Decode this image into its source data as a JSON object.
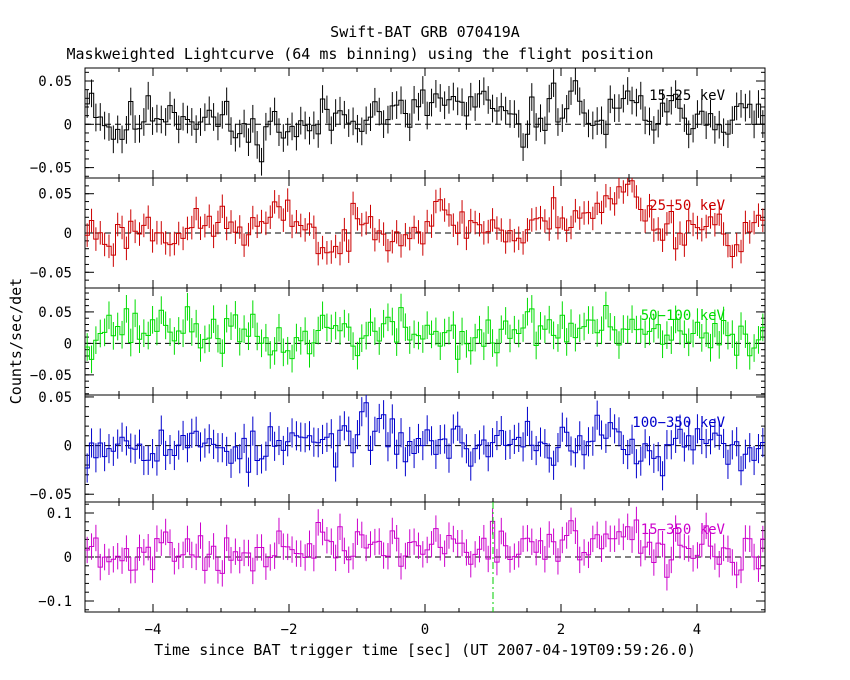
{
  "header": {
    "title": "Swift-BAT GRB 070419A",
    "subtitle": "Maskweighted Lightcurve (64 ms binning) using the flight position"
  },
  "axes": {
    "ylabel": "Counts/sec/det",
    "xlabel": "Time since BAT trigger time [sec] (UT 2007-04-19T09:59:26.0)",
    "xlim": [
      -5,
      5
    ],
    "xticks": [
      -4,
      -2,
      0,
      2,
      4
    ],
    "xtick_labels": [
      "−4",
      "−2",
      "0",
      "2",
      "4"
    ]
  },
  "chart_data": {
    "type": "line",
    "title": "Swift-BAT GRB 070419A",
    "subtitle": "Maskweighted Lightcurve (64 ms binning) using the flight position",
    "xlabel": "Time since BAT trigger time [sec] (UT 2007-04-19T09:59:26.0)",
    "ylabel": "Counts/sec/det",
    "bin_width_sec": 0.064,
    "xlim": [
      -5,
      5
    ],
    "trigger_marker": {
      "x": 1.0,
      "color": "#00cc00",
      "style": "dash-dot"
    },
    "zero_line": "dashed",
    "panels": [
      {
        "band": "15−25 keV",
        "color": "#000000",
        "ylim": [
          -0.062,
          0.065
        ],
        "yticks": [
          -0.05,
          0,
          0.05
        ],
        "ytick_labels": [
          "−0.05",
          "0",
          "0.05"
        ],
        "error_bar": 0.016,
        "noise_amp": 0.013,
        "seed": 11,
        "x": [
          -4.96,
          -4.6,
          -4.2,
          -3.8,
          -3.4,
          -3.0,
          -2.6,
          -2.2,
          -1.8,
          -1.4,
          -1.0,
          -0.6,
          -0.2,
          0.2,
          0.6,
          1.0,
          1.4,
          1.8,
          2.2,
          2.6,
          3.0,
          3.4,
          3.8,
          4.2,
          4.6,
          4.96
        ],
        "y": [
          0.04,
          -0.01,
          0.005,
          0.018,
          0.01,
          0.005,
          -0.015,
          0.0,
          -0.01,
          0.008,
          0.015,
          0.012,
          0.01,
          0.03,
          0.018,
          0.02,
          -0.01,
          0.02,
          0.03,
          -0.005,
          0.025,
          0.005,
          0.015,
          0.012,
          0.01,
          0.008
        ]
      },
      {
        "band": "25−50 keV",
        "color": "#cc0000",
        "ylim": [
          -0.07,
          0.07
        ],
        "yticks": [
          -0.05,
          0,
          0.05
        ],
        "ytick_labels": [
          "−0.05",
          "0",
          "0.05"
        ],
        "error_bar": 0.015,
        "noise_amp": 0.012,
        "seed": 23,
        "x": [
          -4.96,
          -4.6,
          -4.2,
          -3.8,
          -3.4,
          -3.0,
          -2.6,
          -2.2,
          -1.8,
          -1.4,
          -1.0,
          -0.6,
          -0.2,
          0.2,
          0.6,
          1.0,
          1.4,
          1.8,
          2.2,
          2.6,
          3.0,
          3.4,
          3.8,
          4.2,
          4.6,
          4.96
        ],
        "y": [
          0.005,
          -0.01,
          0.01,
          0.0,
          0.005,
          0.015,
          0.0,
          0.02,
          0.02,
          -0.03,
          0.01,
          0.01,
          0.0,
          0.025,
          0.01,
          0.01,
          -0.01,
          0.02,
          0.025,
          0.03,
          0.06,
          0.01,
          0.005,
          0.015,
          -0.01,
          0.015
        ]
      },
      {
        "band": "50−100 keV",
        "color": "#00dd00",
        "ylim": [
          -0.082,
          0.088
        ],
        "yticks": [
          -0.05,
          0,
          0.05
        ],
        "ytick_labels": [
          "−0.05",
          "0",
          "0.05"
        ],
        "error_bar": 0.022,
        "noise_amp": 0.017,
        "seed": 37,
        "x": [
          -4.96,
          -4.6,
          -4.2,
          -3.8,
          -3.4,
          -3.0,
          -2.6,
          -2.2,
          -1.8,
          -1.4,
          -1.0,
          -0.6,
          -0.2,
          0.2,
          0.6,
          1.0,
          1.4,
          1.8,
          2.2,
          2.6,
          3.0,
          3.4,
          3.8,
          4.2,
          4.6,
          4.96
        ],
        "y": [
          0.01,
          0.03,
          0.02,
          0.035,
          0.015,
          0.02,
          0.01,
          0.0,
          0.0,
          0.03,
          0.01,
          0.02,
          0.02,
          0.015,
          0.01,
          0.0,
          0.03,
          0.025,
          0.02,
          0.03,
          0.005,
          0.02,
          0.01,
          0.005,
          0.01,
          0.01
        ]
      },
      {
        "band": "100−350 keV",
        "color": "#0000cc",
        "ylim": [
          -0.058,
          0.052
        ],
        "yticks": [
          -0.05,
          0,
          0.05
        ],
        "ytick_labels": [
          "−0.05",
          "0",
          "0.05"
        ],
        "error_bar": 0.015,
        "noise_amp": 0.011,
        "seed": 53,
        "x": [
          -4.96,
          -4.6,
          -4.2,
          -3.8,
          -3.4,
          -3.0,
          -2.6,
          -2.2,
          -1.8,
          -1.4,
          -1.0,
          -0.6,
          -0.2,
          0.2,
          0.6,
          1.0,
          1.4,
          1.8,
          2.2,
          2.6,
          3.0,
          3.4,
          3.8,
          4.2,
          4.6,
          4.96
        ],
        "y": [
          0.0,
          0.005,
          0.005,
          0.0,
          0.0,
          0.005,
          -0.01,
          0.0,
          0.005,
          0.0,
          0.02,
          0.01,
          0.0,
          0.005,
          0.0,
          0.0,
          0.01,
          0.0,
          0.005,
          0.01,
          0.0,
          -0.02,
          0.005,
          0.0,
          -0.01,
          0.005
        ]
      },
      {
        "band": "15−350 keV",
        "color": "#cc00cc",
        "ylim": [
          -0.125,
          0.125
        ],
        "yticks": [
          -0.1,
          0,
          0.1
        ],
        "ytick_labels": [
          "−0.1",
          "0",
          "0.1"
        ],
        "error_bar": 0.03,
        "noise_amp": 0.024,
        "seed": 71,
        "x": [
          -4.96,
          -4.6,
          -4.2,
          -3.8,
          -3.4,
          -3.0,
          -2.6,
          -2.2,
          -1.8,
          -1.4,
          -1.0,
          -0.6,
          -0.2,
          0.2,
          0.6,
          1.0,
          1.4,
          1.8,
          2.2,
          2.6,
          3.0,
          3.4,
          3.8,
          4.2,
          4.6,
          4.96
        ],
        "y": [
          0.02,
          -0.02,
          0.01,
          0.03,
          0.02,
          0.01,
          -0.01,
          0.01,
          0.02,
          0.03,
          0.02,
          0.03,
          0.01,
          0.04,
          0.02,
          0.05,
          0.0,
          0.03,
          0.04,
          0.03,
          0.05,
          -0.01,
          0.03,
          0.02,
          0.0,
          0.02
        ]
      }
    ]
  }
}
